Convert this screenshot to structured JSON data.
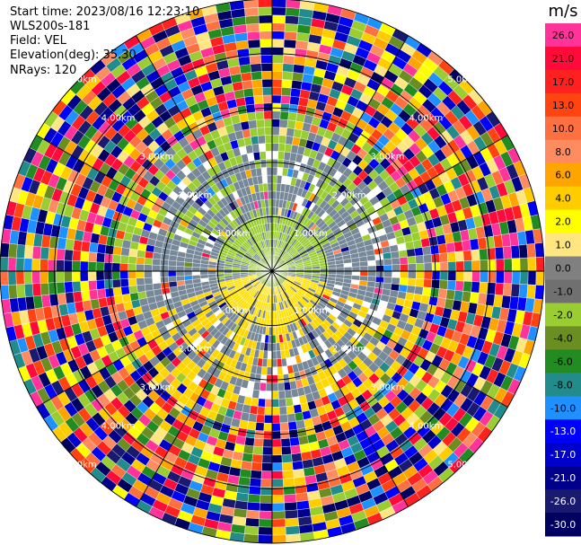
{
  "header": {
    "start_time": "Start time: 2023/08/16 12:23:10",
    "instrument": "WLS200s-181",
    "field": "Field: VEL",
    "elevation": "Elevation(deg): 35.30",
    "nrays": "NRays: 120"
  },
  "chart_data": {
    "type": "heatmap",
    "projection": "polar-ppi",
    "field": "VEL",
    "units": "m/s",
    "n_rays": 120,
    "range_rings_km": [
      1.0,
      2.0,
      3.0,
      4.0,
      5.0
    ],
    "range_ring_labels": [
      "1.00km",
      "2.00km",
      "3.00km",
      "4.00km",
      "5.00km"
    ],
    "max_range_km": 5.0,
    "colorbar": {
      "label": "m/s",
      "ticks": [
        "26.0",
        "21.0",
        "17.0",
        "13.0",
        "10.0",
        "8.0",
        "6.0",
        "4.0",
        "2.0",
        "1.0",
        "0.0",
        "-1.0",
        "-2.0",
        "-4.0",
        "-6.0",
        "-8.0",
        "-10.0",
        "-13.0",
        "-17.0",
        "-21.0",
        "-26.0",
        "-30.0"
      ],
      "colors": [
        "#ff3399",
        "#ff0a3a",
        "#ff2020",
        "#ff4411",
        "#ff7040",
        "#ff8c60",
        "#ffa500",
        "#ffcc00",
        "#ffff00",
        "#ffe680",
        "#808080",
        "#707070",
        "#9acd32",
        "#6b8e23",
        "#228b22",
        "#228b8b",
        "#1e90ff",
        "#0000ff",
        "#0000cd",
        "#00008b",
        "#191970",
        "#000060"
      ]
    },
    "pattern": {
      "inner_near_zero": "gray / yellow-green",
      "positive_lobe": "yellow",
      "negative_lobe": "yellow-green",
      "outer_ranges": "noisy multicolor"
    }
  }
}
